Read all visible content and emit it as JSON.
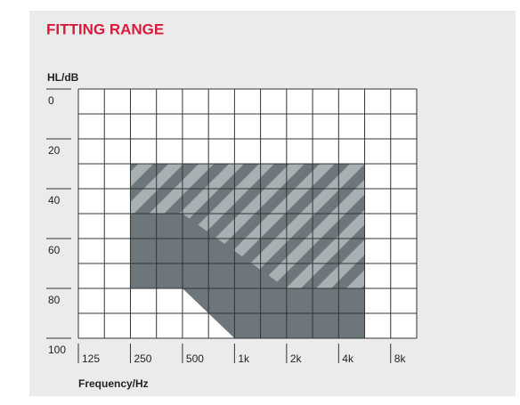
{
  "chart_data": {
    "type": "fitting-range",
    "title": "FITTING RANGE",
    "y_label": "HL/dB",
    "x_label": "Frequency/Hz",
    "x_scale": "log",
    "y_inverted": true,
    "xlim": [
      125,
      11314
    ],
    "ylim": [
      0,
      100
    ],
    "xticks": [
      125,
      250,
      500,
      {
        "value": 1000,
        "label": "1k"
      },
      {
        "value": 2000,
        "label": "2k"
      },
      {
        "value": 4000,
        "label": "4k"
      },
      {
        "value": 8000,
        "label": "8k"
      }
    ],
    "yticks": [
      0,
      20,
      40,
      60,
      80,
      100
    ],
    "grid": true,
    "areas": [
      {
        "color": "#6d777b",
        "points": [
          [
            250,
            30
          ],
          [
            5657,
            30
          ],
          [
            5657,
            100
          ],
          [
            1000,
            100
          ],
          [
            500,
            80
          ],
          [
            250,
            80
          ]
        ]
      },
      {
        "color": "#6d777b",
        "hatch": "#a9b0b3",
        "points": [
          [
            250,
            30
          ],
          [
            5657,
            30
          ],
          [
            5657,
            80
          ],
          [
            2000,
            80
          ],
          [
            500,
            50
          ],
          [
            250,
            50
          ]
        ]
      }
    ]
  }
}
